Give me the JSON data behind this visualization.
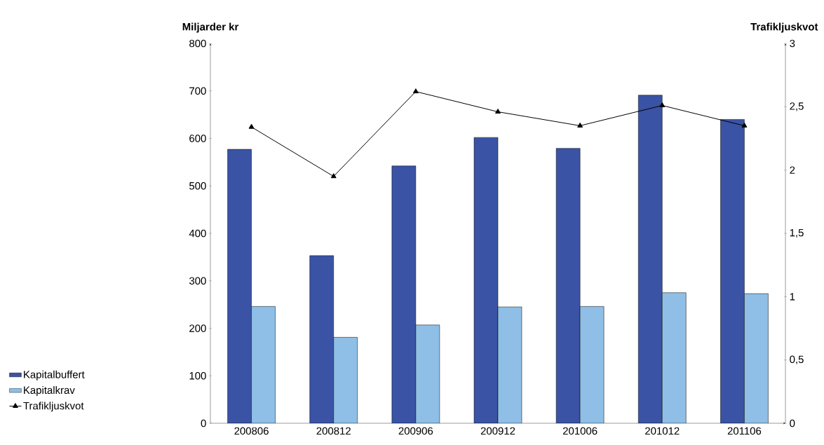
{
  "chart_data": {
    "type": "bar",
    "ylabel": "Miljarder kr",
    "y2label": "Trafikljuskvot",
    "categories": [
      "200806",
      "200812",
      "200906",
      "200912",
      "201006",
      "201012",
      "201106"
    ],
    "series": [
      {
        "name": "Kapitalbuffert",
        "color": "#3a53a4",
        "values": [
          577,
          353,
          542,
          602,
          579,
          691,
          640
        ]
      },
      {
        "name": "Kapitalkrav",
        "color": "#8fbfe6",
        "values": [
          246,
          181,
          207,
          245,
          246,
          275,
          273
        ]
      },
      {
        "name": "Trafikljuskvot",
        "type": "line",
        "axis": "y2",
        "color": "#000000",
        "values": [
          2.34,
          1.95,
          2.62,
          2.46,
          2.35,
          2.51,
          2.35
        ]
      }
    ],
    "ylim": [
      0,
      800
    ],
    "yticks": [
      0,
      100,
      200,
      300,
      400,
      500,
      600,
      700,
      800
    ],
    "y2lim": [
      0,
      3
    ],
    "y2ticks": [
      0,
      {
        "value": 0.5,
        "label": "0,5"
      },
      1,
      {
        "value": 1.5,
        "label": "1,5"
      },
      2,
      {
        "value": 2.5,
        "label": "2,5"
      },
      3
    ],
    "legend": "bottom left",
    "marker": "triangle",
    "line_style": "solid"
  }
}
